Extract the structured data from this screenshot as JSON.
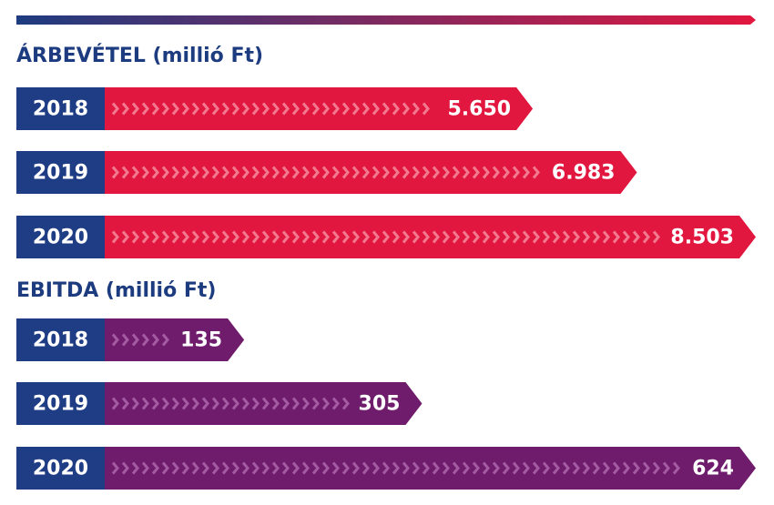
{
  "chart_data": [
    {
      "type": "bar",
      "title": "ÁRBEVÉTEL (millió Ft)",
      "categories": [
        "2018",
        "2019",
        "2020"
      ],
      "values": [
        5650,
        6983,
        8503
      ],
      "value_labels": [
        "5.650",
        "6.983",
        "8.503"
      ],
      "color": "#e2173f"
    },
    {
      "type": "bar",
      "title": "EBITDA (millió Ft)",
      "categories": [
        "2018",
        "2019",
        "2020"
      ],
      "values": [
        135,
        305,
        624
      ],
      "color": "#6e1c6b"
    }
  ]
}
